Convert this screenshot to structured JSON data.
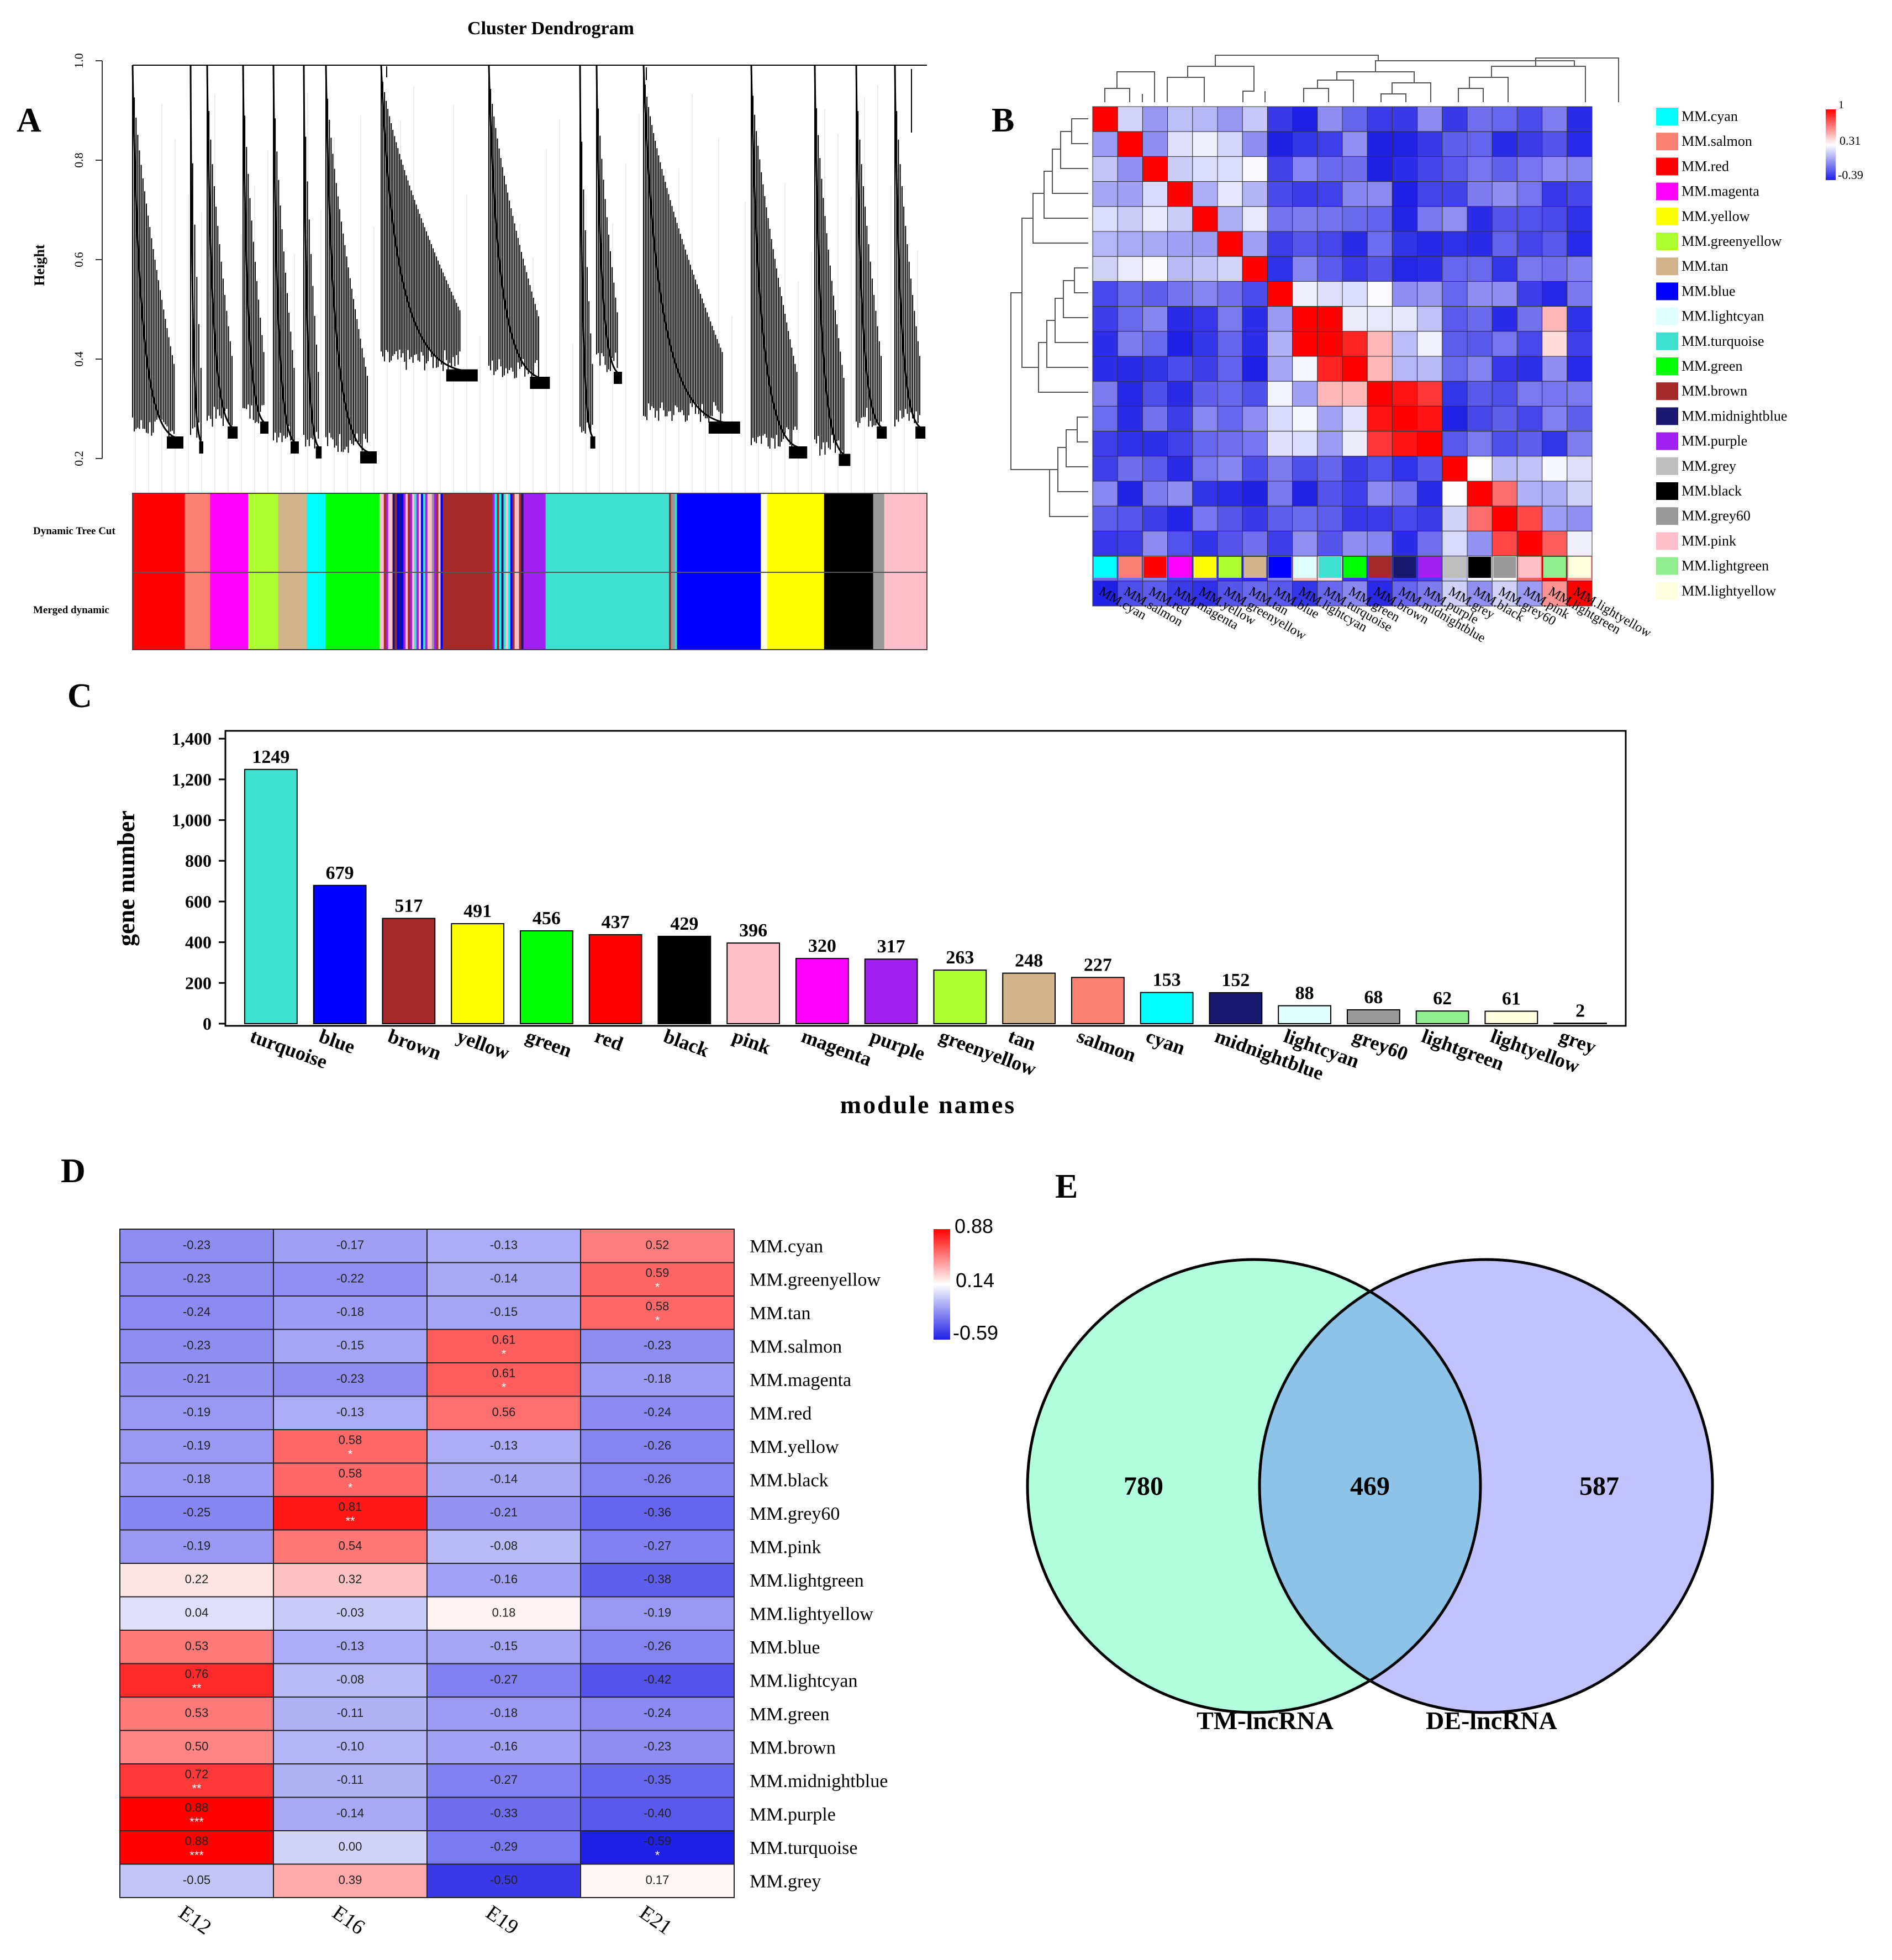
{
  "panel_labels": {
    "a": "A",
    "b": "B",
    "c": "C",
    "d": "D",
    "e": "E"
  },
  "colors": {
    "turquoise": "#40E0D0",
    "blue": "#0000FF",
    "brown": "#A52A2A",
    "yellow": "#FFFF00",
    "green": "#00FF00",
    "red": "#FF0000",
    "black": "#000000",
    "pink": "#FFC0CB",
    "magenta": "#FF00FF",
    "purple": "#A020F0",
    "greenyellow": "#ADFF2F",
    "tan": "#D2B48C",
    "salmon": "#FA8072",
    "cyan": "#00FFFF",
    "midnightblue": "#191970",
    "lightcyan": "#E0FFFF",
    "grey60": "#999999",
    "lightgreen": "#90EE90",
    "lightyellow": "#FFFFE0",
    "grey": "#BEBEBE",
    "heat_low": "#1F1FE6",
    "heat_mid": "#FFFFFF",
    "heat_high": "#FF0000",
    "venn_left": "#B2FFE0",
    "venn_right": "#C2C2FF",
    "venn_overlap": "#8EC3E8"
  },
  "chart_data": [
    {
      "id": "A",
      "type": "dendrogram",
      "title": "Cluster Dendrogram",
      "ylabel": "Height",
      "ylim": [
        0.2,
        1.0
      ],
      "yticks": [
        "0.2",
        "0.4",
        "0.6",
        "0.8",
        "1.0"
      ],
      "row_labels": [
        "Dynamic Tree Cut",
        "Merged dynamic"
      ],
      "module_strip": [
        {
          "color": "red",
          "w": 6.6
        },
        {
          "color": "salmon",
          "w": 3.2
        },
        {
          "color": "magenta",
          "w": 4.8
        },
        {
          "color": "greenyellow",
          "w": 3.8
        },
        {
          "color": "tan",
          "w": 3.6
        },
        {
          "color": "cyan",
          "w": 2.4
        },
        {
          "color": "green",
          "w": 6.8
        },
        {
          "color": "mix1",
          "w": 8.0
        },
        {
          "color": "brown",
          "w": 6.0
        },
        {
          "color": "mix2",
          "w": 4.2
        },
        {
          "color": "purple",
          "w": 2.8
        },
        {
          "color": "turquoise",
          "w": 15.6
        },
        {
          "color": "mix3",
          "w": 1.0
        },
        {
          "color": "blue",
          "w": 10.6
        },
        {
          "color": "lightyellow",
          "w": 0.8
        },
        {
          "color": "yellow",
          "w": 7.2
        },
        {
          "color": "black",
          "w": 6.2
        },
        {
          "color": "grey60",
          "w": 1.4
        },
        {
          "color": "pink",
          "w": 5.4
        }
      ]
    },
    {
      "id": "B",
      "type": "heatmap",
      "labels": [
        "MM.cyan",
        "MM.salmon",
        "MM.red",
        "MM.magenta",
        "MM.yellow",
        "MM.greenyellow",
        "MM.tan",
        "MM.blue",
        "MM.lightcyan",
        "MM.turquoise",
        "MM.green",
        "MM.brown",
        "MM.midnightblue",
        "MM.purple",
        "MM.grey",
        "MM.black",
        "MM.grey60",
        "MM.pink",
        "MM.lightgreen",
        "MM.lightyellow"
      ],
      "label_colors": [
        "cyan",
        "salmon",
        "red",
        "magenta",
        "yellow",
        "greenyellow",
        "tan",
        "blue",
        "lightcyan",
        "turquoise",
        "green",
        "brown",
        "midnightblue",
        "purple",
        "grey",
        "black",
        "grey60",
        "pink",
        "lightgreen",
        "lightyellow"
      ],
      "scale": [
        "1",
        "0.31",
        "-0.39"
      ],
      "range": [
        -0.39,
        1
      ]
    },
    {
      "id": "C",
      "type": "bar",
      "categories": [
        "turquoise",
        "blue",
        "brown",
        "yellow",
        "green",
        "red",
        "black",
        "pink",
        "magenta",
        "purple",
        "greenyellow",
        "tan",
        "salmon",
        "cyan",
        "midnightblue",
        "lightcyan",
        "grey60",
        "lightgreen",
        "lightyellow",
        "grey"
      ],
      "values": [
        1249,
        679,
        517,
        491,
        456,
        437,
        429,
        396,
        320,
        317,
        263,
        248,
        227,
        153,
        152,
        88,
        68,
        62,
        61,
        2
      ],
      "value_labels": [
        "1249",
        "679",
        "517",
        "491",
        "456",
        "437",
        "429",
        "396",
        "320",
        "317",
        "263",
        "248",
        "227",
        "153",
        "152",
        "88",
        "68",
        "62",
        "61",
        "2"
      ],
      "xlabel": "module names",
      "ylabel": "gene number",
      "ylim": [
        0,
        1400
      ],
      "yticks": [
        "0",
        "200",
        "400",
        "600",
        "800",
        "1,000",
        "1,200",
        "1,400"
      ]
    },
    {
      "id": "D",
      "type": "heatmap",
      "columns": [
        "E12",
        "E16",
        "E19",
        "E21"
      ],
      "rows": [
        "MM.cyan",
        "MM.greenyellow",
        "MM.tan",
        "MM.salmon",
        "MM.magenta",
        "MM.red",
        "MM.yellow",
        "MM.black",
        "MM.grey60",
        "MM.pink",
        "MM.lightgreen",
        "MM.lightyellow",
        "MM.blue",
        "MM.lightcyan",
        "MM.green",
        "MM.brown",
        "MM.midnightblue",
        "MM.purple",
        "MM.turquoise",
        "MM.grey"
      ],
      "values": [
        [
          "-0.23",
          "-0.17",
          "-0.13",
          "0.52"
        ],
        [
          "-0.23",
          "-0.22",
          "-0.14",
          "0.59"
        ],
        [
          "-0.24",
          "-0.18",
          "-0.15",
          "0.58"
        ],
        [
          "-0.23",
          "-0.15",
          "0.61",
          "-0.23"
        ],
        [
          "-0.21",
          "-0.23",
          "0.61",
          "-0.18"
        ],
        [
          "-0.19",
          "-0.13",
          "0.56",
          "-0.24"
        ],
        [
          "-0.19",
          "0.58",
          "-0.13",
          "-0.26"
        ],
        [
          "-0.18",
          "0.58",
          "-0.14",
          "-0.26"
        ],
        [
          "-0.25",
          "0.81",
          "-0.21",
          "-0.36"
        ],
        [
          "-0.19",
          "0.54",
          "-0.08",
          "-0.27"
        ],
        [
          "0.22",
          "0.32",
          "-0.16",
          "-0.38"
        ],
        [
          "0.04",
          "-0.03",
          "0.18",
          "-0.19"
        ],
        [
          "0.53",
          "-0.13",
          "-0.15",
          "-0.26"
        ],
        [
          "0.76",
          "-0.08",
          "-0.27",
          "-0.42"
        ],
        [
          "0.53",
          "-0.11",
          "-0.18",
          "-0.24"
        ],
        [
          "0.50",
          "-0.10",
          "-0.16",
          "-0.23"
        ],
        [
          "0.72",
          "-0.11",
          "-0.27",
          "-0.35"
        ],
        [
          "0.88",
          "-0.14",
          "-0.33",
          "-0.40"
        ],
        [
          "0.88",
          "0.00",
          "-0.29",
          "-0.59"
        ],
        [
          "-0.05",
          "0.39",
          "-0.50",
          "0.17"
        ]
      ],
      "stars": [
        [
          "",
          "",
          "",
          ""
        ],
        [
          "",
          "",
          "",
          "*"
        ],
        [
          "",
          "",
          "",
          "*"
        ],
        [
          "",
          "",
          "*",
          ""
        ],
        [
          "",
          "",
          "*",
          ""
        ],
        [
          "",
          "",
          "",
          ""
        ],
        [
          "",
          "*",
          "",
          ""
        ],
        [
          "",
          "*",
          "",
          ""
        ],
        [
          "",
          "**",
          "",
          ""
        ],
        [
          "",
          "",
          "",
          ""
        ],
        [
          "",
          "",
          "",
          ""
        ],
        [
          "",
          "",
          "",
          ""
        ],
        [
          "",
          "",
          "",
          ""
        ],
        [
          "**",
          "",
          "",
          ""
        ],
        [
          "",
          "",
          "",
          ""
        ],
        [
          "",
          "",
          "",
          ""
        ],
        [
          "**",
          "",
          "",
          ""
        ],
        [
          "***",
          "",
          "",
          ""
        ],
        [
          "***",
          "",
          "",
          "*"
        ],
        [
          "",
          "",
          "",
          ""
        ]
      ],
      "scale": [
        "0.88",
        "0.14",
        "-0.59"
      ],
      "range": [
        -0.59,
        0.88
      ]
    },
    {
      "id": "E",
      "type": "venn",
      "sets": [
        {
          "name": "TM-lncRNA",
          "only": "780"
        },
        {
          "name": "DE-lncRNA",
          "only": "587"
        }
      ],
      "intersection": "469"
    }
  ]
}
